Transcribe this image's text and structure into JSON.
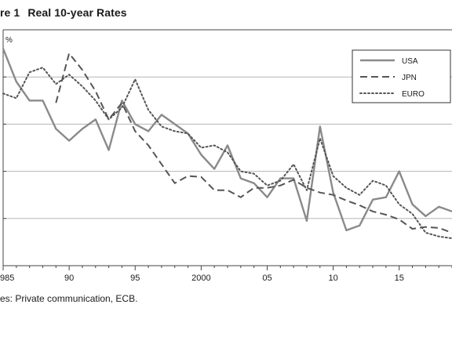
{
  "figure": {
    "label": "re 1",
    "title": "Real 10-year Rates",
    "unit": "%",
    "source": "es:  Private communication, ECB."
  },
  "chart_data": {
    "type": "line",
    "title": "Real 10-year Rates",
    "xlabel": "",
    "ylabel": "%",
    "xlim": [
      1985,
      2019
    ],
    "ylim": [
      0,
      5
    ],
    "grid": true,
    "legend_position": "top-right",
    "x_tick_values": [
      1985,
      1990,
      1995,
      2000,
      2005,
      2010,
      2015
    ],
    "x_tick_labels": [
      "985",
      "90",
      "95",
      "2000",
      "05",
      "10",
      "15"
    ],
    "y_gridlines": [
      1,
      2,
      3,
      4,
      5
    ],
    "series": [
      {
        "name": "USA",
        "style": "solid",
        "color": "#8a8a8a",
        "x": [
          1985,
          1986,
          1987,
          1988,
          1989,
          1990,
          1991,
          1992,
          1993,
          1994,
          1995,
          1996,
          1997,
          1998,
          1999,
          2000,
          2001,
          2002,
          2003,
          2004,
          2005,
          2006,
          2007,
          2008,
          2009,
          2010,
          2011,
          2012,
          2013,
          2014,
          2015,
          2016,
          2017,
          2018,
          2019
        ],
        "y": [
          4.6,
          3.9,
          3.5,
          3.5,
          2.9,
          2.65,
          2.9,
          3.1,
          2.45,
          3.5,
          3.0,
          2.85,
          3.2,
          3.0,
          2.8,
          2.35,
          2.05,
          2.55,
          1.85,
          1.75,
          1.45,
          1.85,
          1.85,
          0.95,
          2.95,
          1.55,
          0.75,
          0.85,
          1.4,
          1.45,
          2.0,
          1.3,
          1.05,
          1.25,
          1.15
        ]
      },
      {
        "name": "JPN",
        "style": "dashed",
        "color": "#555555",
        "x": [
          1989,
          1990,
          1991,
          1992,
          1993,
          1994,
          1995,
          1996,
          1997,
          1998,
          1999,
          2000,
          2001,
          2002,
          2003,
          2004,
          2005,
          2006,
          2007,
          2008,
          2009,
          2010,
          2011,
          2012,
          2013,
          2014,
          2015,
          2016,
          2017,
          2018,
          2019
        ],
        "y": [
          3.45,
          4.5,
          4.15,
          3.7,
          3.1,
          3.45,
          2.85,
          2.55,
          2.15,
          1.75,
          1.9,
          1.88,
          1.6,
          1.6,
          1.45,
          1.65,
          1.65,
          1.7,
          1.82,
          1.65,
          1.55,
          1.5,
          1.38,
          1.28,
          1.15,
          1.08,
          0.98,
          0.78,
          0.82,
          0.8,
          0.7
        ]
      },
      {
        "name": "EURO",
        "style": "dotted",
        "color": "#555555",
        "x": [
          1985,
          1986,
          1987,
          1988,
          1989,
          1990,
          1991,
          1992,
          1993,
          1994,
          1995,
          1996,
          1997,
          1998,
          1999,
          2000,
          2001,
          2002,
          2003,
          2004,
          2005,
          2006,
          2007,
          2008,
          2009,
          2010,
          2011,
          2012,
          2013,
          2014,
          2015,
          2016,
          2017,
          2018,
          2019
        ],
        "y": [
          3.65,
          3.55,
          4.1,
          4.2,
          3.85,
          4.05,
          3.8,
          3.5,
          3.1,
          3.35,
          3.95,
          3.3,
          2.95,
          2.85,
          2.8,
          2.5,
          2.55,
          2.4,
          2.0,
          1.95,
          1.7,
          1.8,
          2.15,
          1.6,
          2.7,
          1.9,
          1.65,
          1.5,
          1.8,
          1.7,
          1.3,
          1.1,
          0.7,
          0.62,
          0.58
        ]
      }
    ]
  }
}
